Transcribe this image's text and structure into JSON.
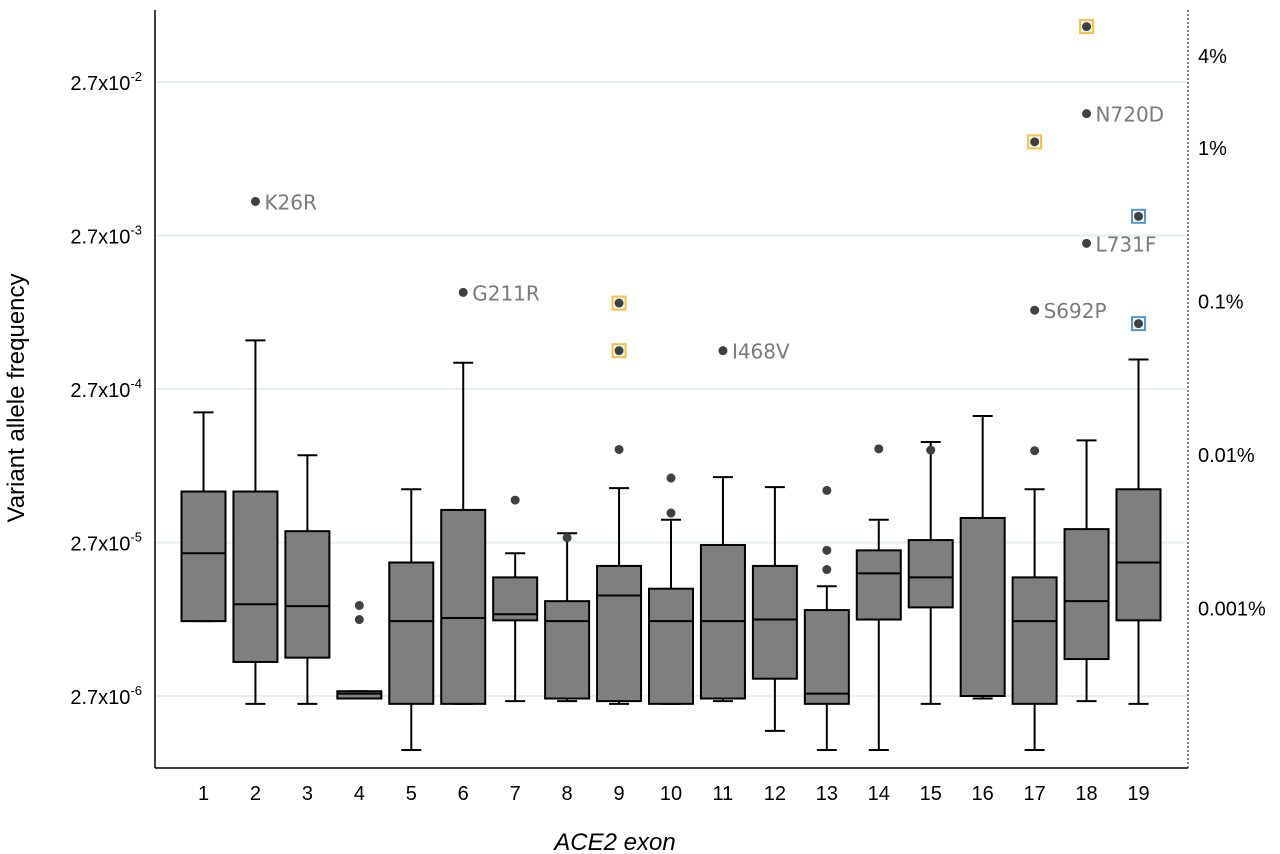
{
  "chart_data": {
    "type": "box",
    "xlabel": "ACE2 exon",
    "ylabel": "Variant allele frequency",
    "y_scale": "log",
    "ylim": [
      1.1e-06,
      0.069
    ],
    "grid": "horizontal",
    "y_ticks": [
      {
        "value": 2.7e-06,
        "label": "2.7x10",
        "exp": "-6"
      },
      {
        "value": 2.7e-05,
        "label": "2.7x10",
        "exp": "-5"
      },
      {
        "value": 0.00027,
        "label": "2.7x10",
        "exp": "-4"
      },
      {
        "value": 0.0027,
        "label": "2.7x10",
        "exp": "-3"
      },
      {
        "value": 0.027,
        "label": "2.7x10",
        "exp": "-2"
      }
    ],
    "y2_ticks": [
      {
        "value": 1e-05,
        "label": "0.001%"
      },
      {
        "value": 0.0001,
        "label": "0.01%"
      },
      {
        "value": 0.001,
        "label": "0.1%"
      },
      {
        "value": 0.01,
        "label": "1%"
      },
      {
        "value": 0.04,
        "label": "4%"
      }
    ],
    "categories": [
      "1",
      "2",
      "3",
      "4",
      "5",
      "6",
      "7",
      "8",
      "9",
      "10",
      "11",
      "12",
      "13",
      "14",
      "15",
      "16",
      "17",
      "18",
      "19"
    ],
    "boxes": [
      {
        "min": 8.3e-06,
        "q1": 8.3e-06,
        "median": 2.3e-05,
        "q3": 5.8e-05,
        "max": 0.00019
      },
      {
        "min": 2.4e-06,
        "q1": 4.5e-06,
        "median": 1.07e-05,
        "q3": 5.8e-05,
        "max": 0.00056
      },
      {
        "min": 2.4e-06,
        "q1": 4.8e-06,
        "median": 1.04e-05,
        "q3": 3.2e-05,
        "max": 0.0001
      },
      {
        "min": 2.6e-06,
        "q1": 2.6e-06,
        "median": 2.8e-06,
        "q3": 2.9e-06,
        "max": 2.9e-06
      },
      {
        "min": 1.2e-06,
        "q1": 2.4e-06,
        "median": 8.3e-06,
        "q3": 2e-05,
        "max": 6e-05
      },
      {
        "min": 2.4e-06,
        "q1": 2.4e-06,
        "median": 8.7e-06,
        "q3": 4.4e-05,
        "max": 0.0004
      },
      {
        "min": 2.5e-06,
        "q1": 8.4e-06,
        "median": 9.2e-06,
        "q3": 1.6e-05,
        "max": 2.3e-05
      },
      {
        "min": 2.5e-06,
        "q1": 2.6e-06,
        "median": 8.3e-06,
        "q3": 1.12e-05,
        "max": 3.1e-05
      },
      {
        "min": 2.4e-06,
        "q1": 2.5e-06,
        "median": 1.22e-05,
        "q3": 1.9e-05,
        "max": 6.1e-05
      },
      {
        "min": 2.4e-06,
        "q1": 2.4e-06,
        "median": 8.3e-06,
        "q3": 1.35e-05,
        "max": 3.8e-05
      },
      {
        "min": 2.5e-06,
        "q1": 2.6e-06,
        "median": 8.3e-06,
        "q3": 2.6e-05,
        "max": 7.2e-05
      },
      {
        "min": 1.6e-06,
        "q1": 3.5e-06,
        "median": 8.5e-06,
        "q3": 1.9e-05,
        "max": 6.2e-05
      },
      {
        "min": 1.2e-06,
        "q1": 2.4e-06,
        "median": 2.8e-06,
        "q3": 9.8e-06,
        "max": 1.4e-05
      },
      {
        "min": 1.2e-06,
        "q1": 8.5e-06,
        "median": 1.7e-05,
        "q3": 2.4e-05,
        "max": 3.8e-05
      },
      {
        "min": 2.4e-06,
        "q1": 1.02e-05,
        "median": 1.6e-05,
        "q3": 2.8e-05,
        "max": 0.000122
      },
      {
        "min": 2.6e-06,
        "q1": 2.7e-06,
        "median": 2.7e-06,
        "q3": 3.9e-05,
        "max": 0.00018
      },
      {
        "min": 1.2e-06,
        "q1": 2.4e-06,
        "median": 8.3e-06,
        "q3": 1.6e-05,
        "max": 6e-05
      },
      {
        "min": 2.5e-06,
        "q1": 4.7e-06,
        "median": 1.12e-05,
        "q3": 3.3e-05,
        "max": 0.000125
      },
      {
        "min": 2.4e-06,
        "q1": 8.4e-06,
        "median": 2e-05,
        "q3": 6e-05,
        "max": 0.00042
      }
    ],
    "outliers": [
      {
        "exon": "2",
        "value": 0.0045,
        "label": "K26R"
      },
      {
        "exon": "4",
        "value": 1.05e-05
      },
      {
        "exon": "4",
        "value": 8.5e-06
      },
      {
        "exon": "6",
        "value": 0.00115,
        "label": "G211R"
      },
      {
        "exon": "7",
        "value": 5.1e-05
      },
      {
        "exon": "8",
        "value": 2.9e-05
      },
      {
        "exon": "9",
        "value": 0.00098,
        "marker": "gold-square"
      },
      {
        "exon": "9",
        "value": 0.00048,
        "marker": "gold-square"
      },
      {
        "exon": "9",
        "value": 0.000109
      },
      {
        "exon": "10",
        "value": 7.1e-05
      },
      {
        "exon": "10",
        "value": 4.2e-05
      },
      {
        "exon": "11",
        "value": 0.00048,
        "label": "I468V"
      },
      {
        "exon": "13",
        "value": 5.9e-05
      },
      {
        "exon": "13",
        "value": 2.4e-05
      },
      {
        "exon": "13",
        "value": 1.8e-05
      },
      {
        "exon": "14",
        "value": 0.00011
      },
      {
        "exon": "15",
        "value": 0.000108
      },
      {
        "exon": "17",
        "value": 0.00088,
        "label": "S692P"
      },
      {
        "exon": "17",
        "value": 0.000107
      },
      {
        "exon": "17",
        "value": 0.011,
        "marker": "gold-square"
      },
      {
        "exon": "18",
        "value": 0.062,
        "marker": "gold-square"
      },
      {
        "exon": "18",
        "value": 0.0168,
        "label": "N720D"
      },
      {
        "exon": "18",
        "value": 0.0024,
        "label": "L731F"
      },
      {
        "exon": "19",
        "value": 0.0036,
        "marker": "blue-square"
      },
      {
        "exon": "19",
        "value": 0.00072,
        "marker": "blue-square"
      }
    ],
    "colors": {
      "box_fill": "#7f7f7f",
      "box_stroke": "#000000",
      "outlier": "#404040",
      "gold_marker": "#f5c242",
      "blue_marker": "#4f9bd1",
      "grid": "#e6efee",
      "annotation_text": "#7a7a7a"
    }
  }
}
